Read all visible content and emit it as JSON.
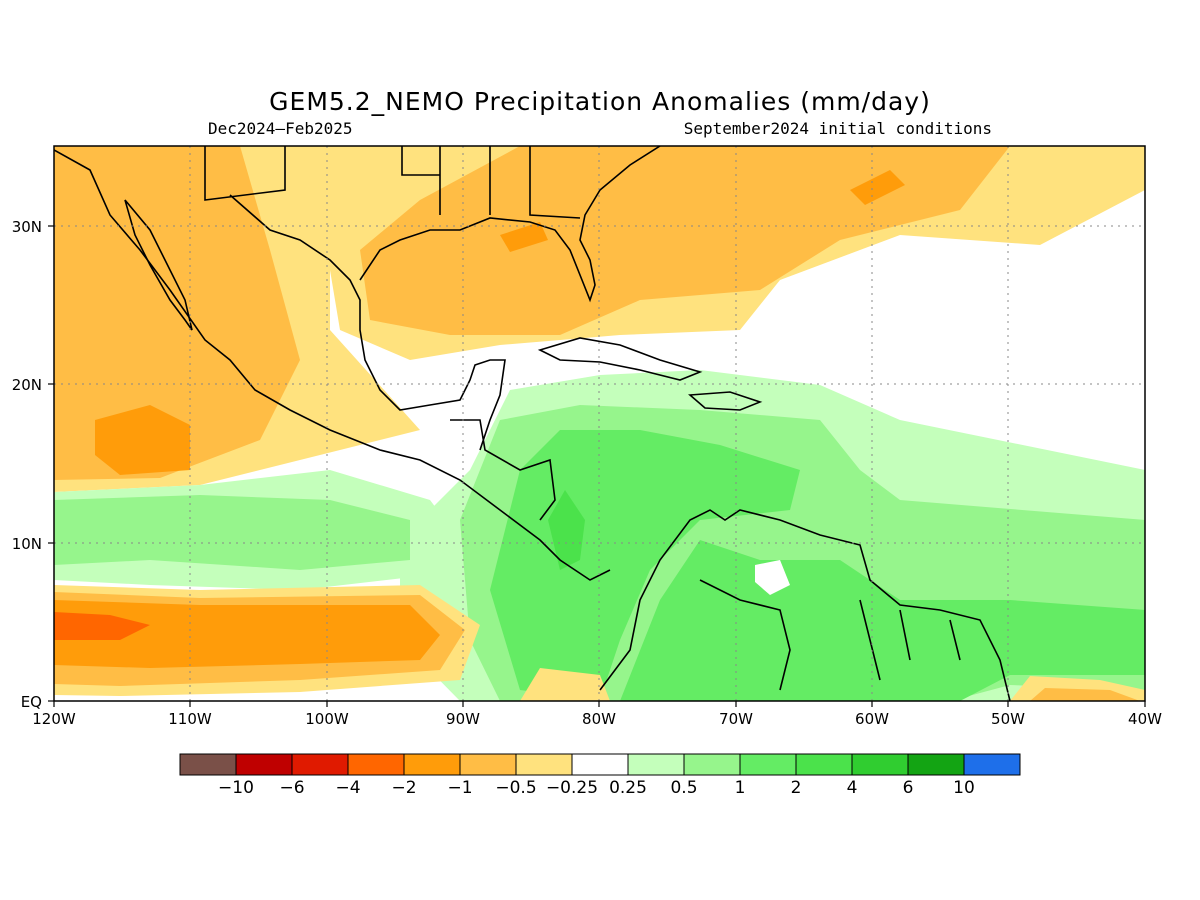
{
  "title": "GEM5.2_NEMO Precipitation Anomalies (mm/day)",
  "subtitle_left": "Dec2024–Feb2025",
  "subtitle_right": "September2024 initial conditions",
  "map": {
    "lon_range": [
      -120,
      -40
    ],
    "lat_range": [
      0,
      35
    ],
    "x_ticks": [
      "120W",
      "110W",
      "100W",
      "90W",
      "80W",
      "70W",
      "60W",
      "50W",
      "40W"
    ],
    "y_ticks": [
      "EQ",
      "10N",
      "20N",
      "30N"
    ],
    "grid": "dotted"
  },
  "colorbar": {
    "colors": [
      "#7a5048",
      "#bf0000",
      "#e01a00",
      "#ff6600",
      "#ff9c0a",
      "#ffbd45",
      "#ffe27e",
      "#ffffff",
      "#c4ffbb",
      "#96f58c",
      "#64ec64",
      "#4be24b",
      "#30cd30",
      "#13a413",
      "#1e6fea"
    ],
    "labels": [
      "−10",
      "−6",
      "−4",
      "−2",
      "−1",
      "−0.5",
      "−0.25",
      "0.25",
      "0.5",
      "1",
      "2",
      "4",
      "6",
      "10"
    ]
  }
}
